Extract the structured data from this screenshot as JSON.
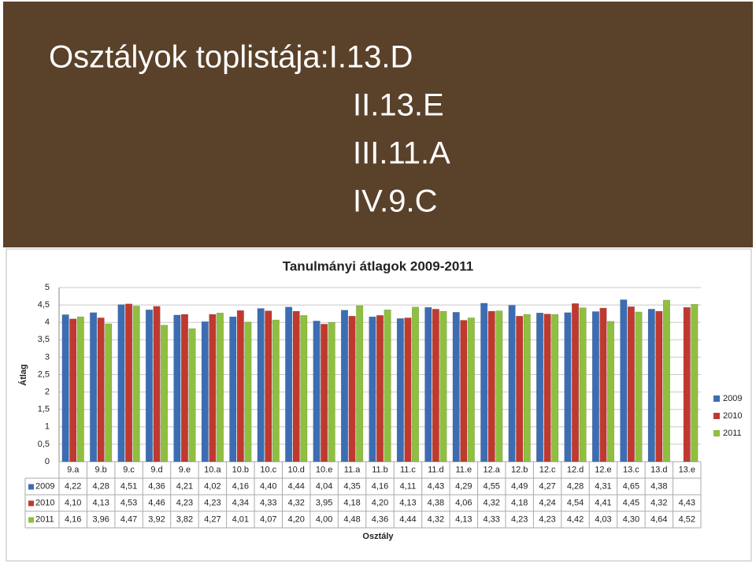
{
  "slide": {
    "title_lines": [
      "Osztályok toplistája:I.13.D",
      "II.13.E",
      "III.11.A",
      "IV.9.C"
    ]
  },
  "chart_data": {
    "type": "bar",
    "title": "Tanulmányi átlagok 2009-2011",
    "y_label": "Átlag",
    "x_label": "Osztály",
    "categories": [
      "9.a",
      "9.b",
      "9.c",
      "9.d",
      "9.e",
      "10.a",
      "10.b",
      "10.c",
      "10.d",
      "10.e",
      "11.a",
      "11.b",
      "11.c",
      "11.d",
      "11.e",
      "12.a",
      "12.b",
      "12.c",
      "12.d",
      "12.e",
      "13.c",
      "13.d",
      "13.e"
    ],
    "series": [
      {
        "name": "2009",
        "color": "#3c6db4",
        "values": [
          4.22,
          4.28,
          4.51,
          4.36,
          4.21,
          4.02,
          4.16,
          4.4,
          4.44,
          4.04,
          4.35,
          4.16,
          4.11,
          4.43,
          4.29,
          4.55,
          4.49,
          4.27,
          4.28,
          4.31,
          4.65,
          4.38,
          null
        ],
        "value_labels": [
          "4,22",
          "4,28",
          "4,51",
          "4,36",
          "4,21",
          "4,02",
          "4,16",
          "4,40",
          "4,44",
          "4,04",
          "4,35",
          "4,16",
          "4,11",
          "4,43",
          "4,29",
          "4,55",
          "4,49",
          "4,27",
          "4,28",
          "4,31",
          "4,65",
          "4,38",
          null
        ]
      },
      {
        "name": "2010",
        "color": "#c0392f",
        "values": [
          4.1,
          4.13,
          4.53,
          4.46,
          4.23,
          4.23,
          4.34,
          4.33,
          4.32,
          3.95,
          4.18,
          4.2,
          4.13,
          4.38,
          4.06,
          4.32,
          4.18,
          4.24,
          4.54,
          4.41,
          4.45,
          4.32,
          4.43
        ],
        "value_labels": [
          "4,10",
          "4,13",
          "4,53",
          "4,46",
          "4,23",
          "4,23",
          "4,34",
          "4,33",
          "4,32",
          "3,95",
          "4,18",
          "4,20",
          "4,13",
          "4,38",
          "4,06",
          "4,32",
          "4,18",
          "4,24",
          "4,54",
          "4,41",
          "4,45",
          "4,32",
          "4,43"
        ]
      },
      {
        "name": "2011",
        "color": "#8fbf3f",
        "values": [
          4.16,
          3.96,
          4.47,
          3.92,
          3.82,
          4.27,
          4.01,
          4.07,
          4.2,
          4.0,
          4.48,
          4.36,
          4.44,
          4.32,
          4.13,
          4.33,
          4.23,
          4.23,
          4.42,
          4.03,
          4.3,
          4.64,
          4.52
        ],
        "value_labels": [
          "4,16",
          "3,96",
          "4,47",
          "3,92",
          "3,82",
          "4,27",
          "4,01",
          "4,07",
          "4,20",
          "4,00",
          "4,48",
          "4,36",
          "4,44",
          "4,32",
          "4,13",
          "4,33",
          "4,23",
          "4,23",
          "4,42",
          "4,03",
          "4,30",
          "4,64",
          "4,52"
        ]
      }
    ],
    "ylim": [
      0,
      5
    ],
    "yticks": [
      0,
      {
        "value": 0.5,
        "label": "0,5"
      },
      1,
      {
        "value": 1.5,
        "label": "1,5"
      },
      2,
      {
        "value": 2.5,
        "label": "2,5"
      },
      3,
      {
        "value": 3.5,
        "label": "3,5"
      },
      4,
      {
        "value": 4.5,
        "label": "4,5"
      },
      5
    ],
    "grid": true,
    "legend": "right"
  }
}
